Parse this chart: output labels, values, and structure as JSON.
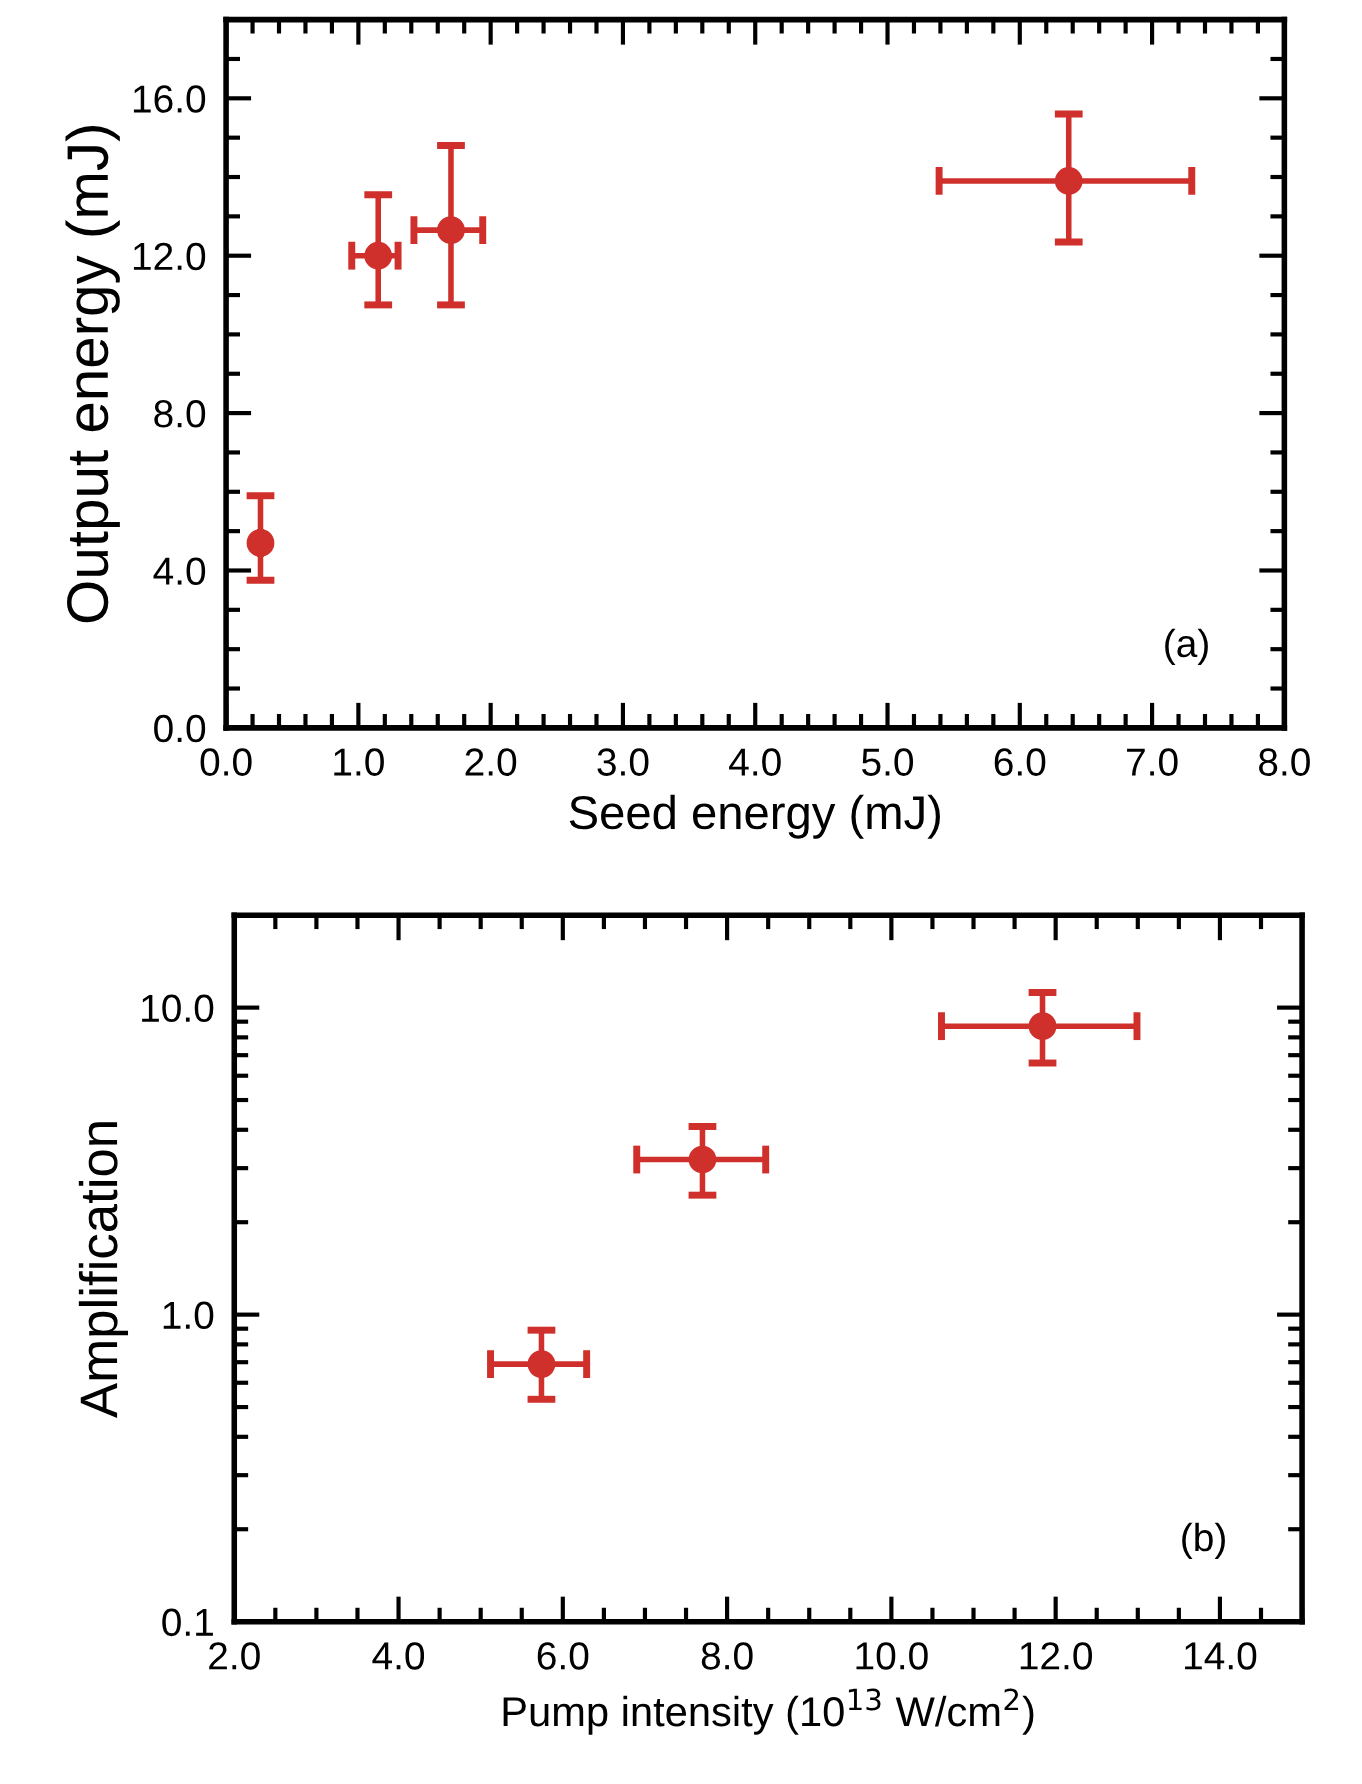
{
  "chart_data": [
    {
      "type": "scatter",
      "xlabel": "Seed energy (mJ)",
      "ylabel": "Output energy (mJ)",
      "annotations": [
        "(a)"
      ],
      "marker": "circle",
      "grid": false,
      "xlim": [
        0,
        8
      ],
      "ylim": [
        0,
        18
      ],
      "xticks": [
        {
          "value": 0,
          "label": "0.0"
        },
        {
          "value": 1,
          "label": "1.0"
        },
        {
          "value": 2,
          "label": "2.0"
        },
        {
          "value": 3,
          "label": "3.0"
        },
        {
          "value": 4,
          "label": "4.0"
        },
        {
          "value": 5,
          "label": "5.0"
        },
        {
          "value": 6,
          "label": "6.0"
        },
        {
          "value": 7,
          "label": "7.0"
        },
        {
          "value": 8,
          "label": "8.0"
        }
      ],
      "yticks": [
        {
          "value": 0,
          "label": "0.0"
        },
        {
          "value": 4,
          "label": "4.0"
        },
        {
          "value": 8,
          "label": "8.0"
        },
        {
          "value": 12,
          "label": "12.0"
        },
        {
          "value": 16,
          "label": "16.0"
        }
      ],
      "x": [
        0.26,
        1.15,
        1.7,
        6.37
      ],
      "series": [
        {
          "color": "#d0302b",
          "values": [
            4.7,
            12.0,
            12.65,
            13.9
          ],
          "errors": [
            [
              3.75,
              5.9
            ],
            [
              10.75,
              13.55
            ],
            [
              10.75,
              14.8
            ],
            [
              12.35,
              15.6
            ]
          ],
          "xerrors": [
            null,
            [
              0.95,
              1.3
            ],
            [
              1.42,
              1.94
            ],
            [
              5.39,
              7.3
            ]
          ]
        }
      ]
    },
    {
      "type": "scatter",
      "xlabel": "Pump intensity (10$^{13}$ W/cm$^{2}$)",
      "ylabel": "Amplification",
      "annotations": [
        "(b)"
      ],
      "marker": "circle",
      "grid": false,
      "log": "y",
      "xlim": [
        2,
        15
      ],
      "ylim": [
        0.1,
        20
      ],
      "xticks": [
        {
          "value": 2,
          "label": "2.0"
        },
        {
          "value": 4,
          "label": "4.0"
        },
        {
          "value": 6,
          "label": "6.0"
        },
        {
          "value": 8,
          "label": "8.0"
        },
        {
          "value": 10,
          "label": "10.0"
        },
        {
          "value": 12,
          "label": "12.0"
        },
        {
          "value": 14,
          "label": "14.0"
        }
      ],
      "yticks": [
        0.1,
        {
          "value": 1,
          "label": "1.0"
        },
        {
          "value": 10,
          "label": "10.0"
        }
      ],
      "x": [
        5.74,
        7.7,
        11.84
      ],
      "series": [
        {
          "color": "#d0302b",
          "values": [
            0.69,
            3.2,
            8.7
          ],
          "errors": [
            [
              0.53,
              0.89
            ],
            [
              2.45,
              4.1
            ],
            [
              6.6,
              11.2
            ]
          ],
          "xerrors": [
            [
              5.12,
              6.29
            ],
            [
              6.9,
              8.47
            ],
            [
              10.61,
              12.99
            ]
          ]
        }
      ]
    }
  ]
}
